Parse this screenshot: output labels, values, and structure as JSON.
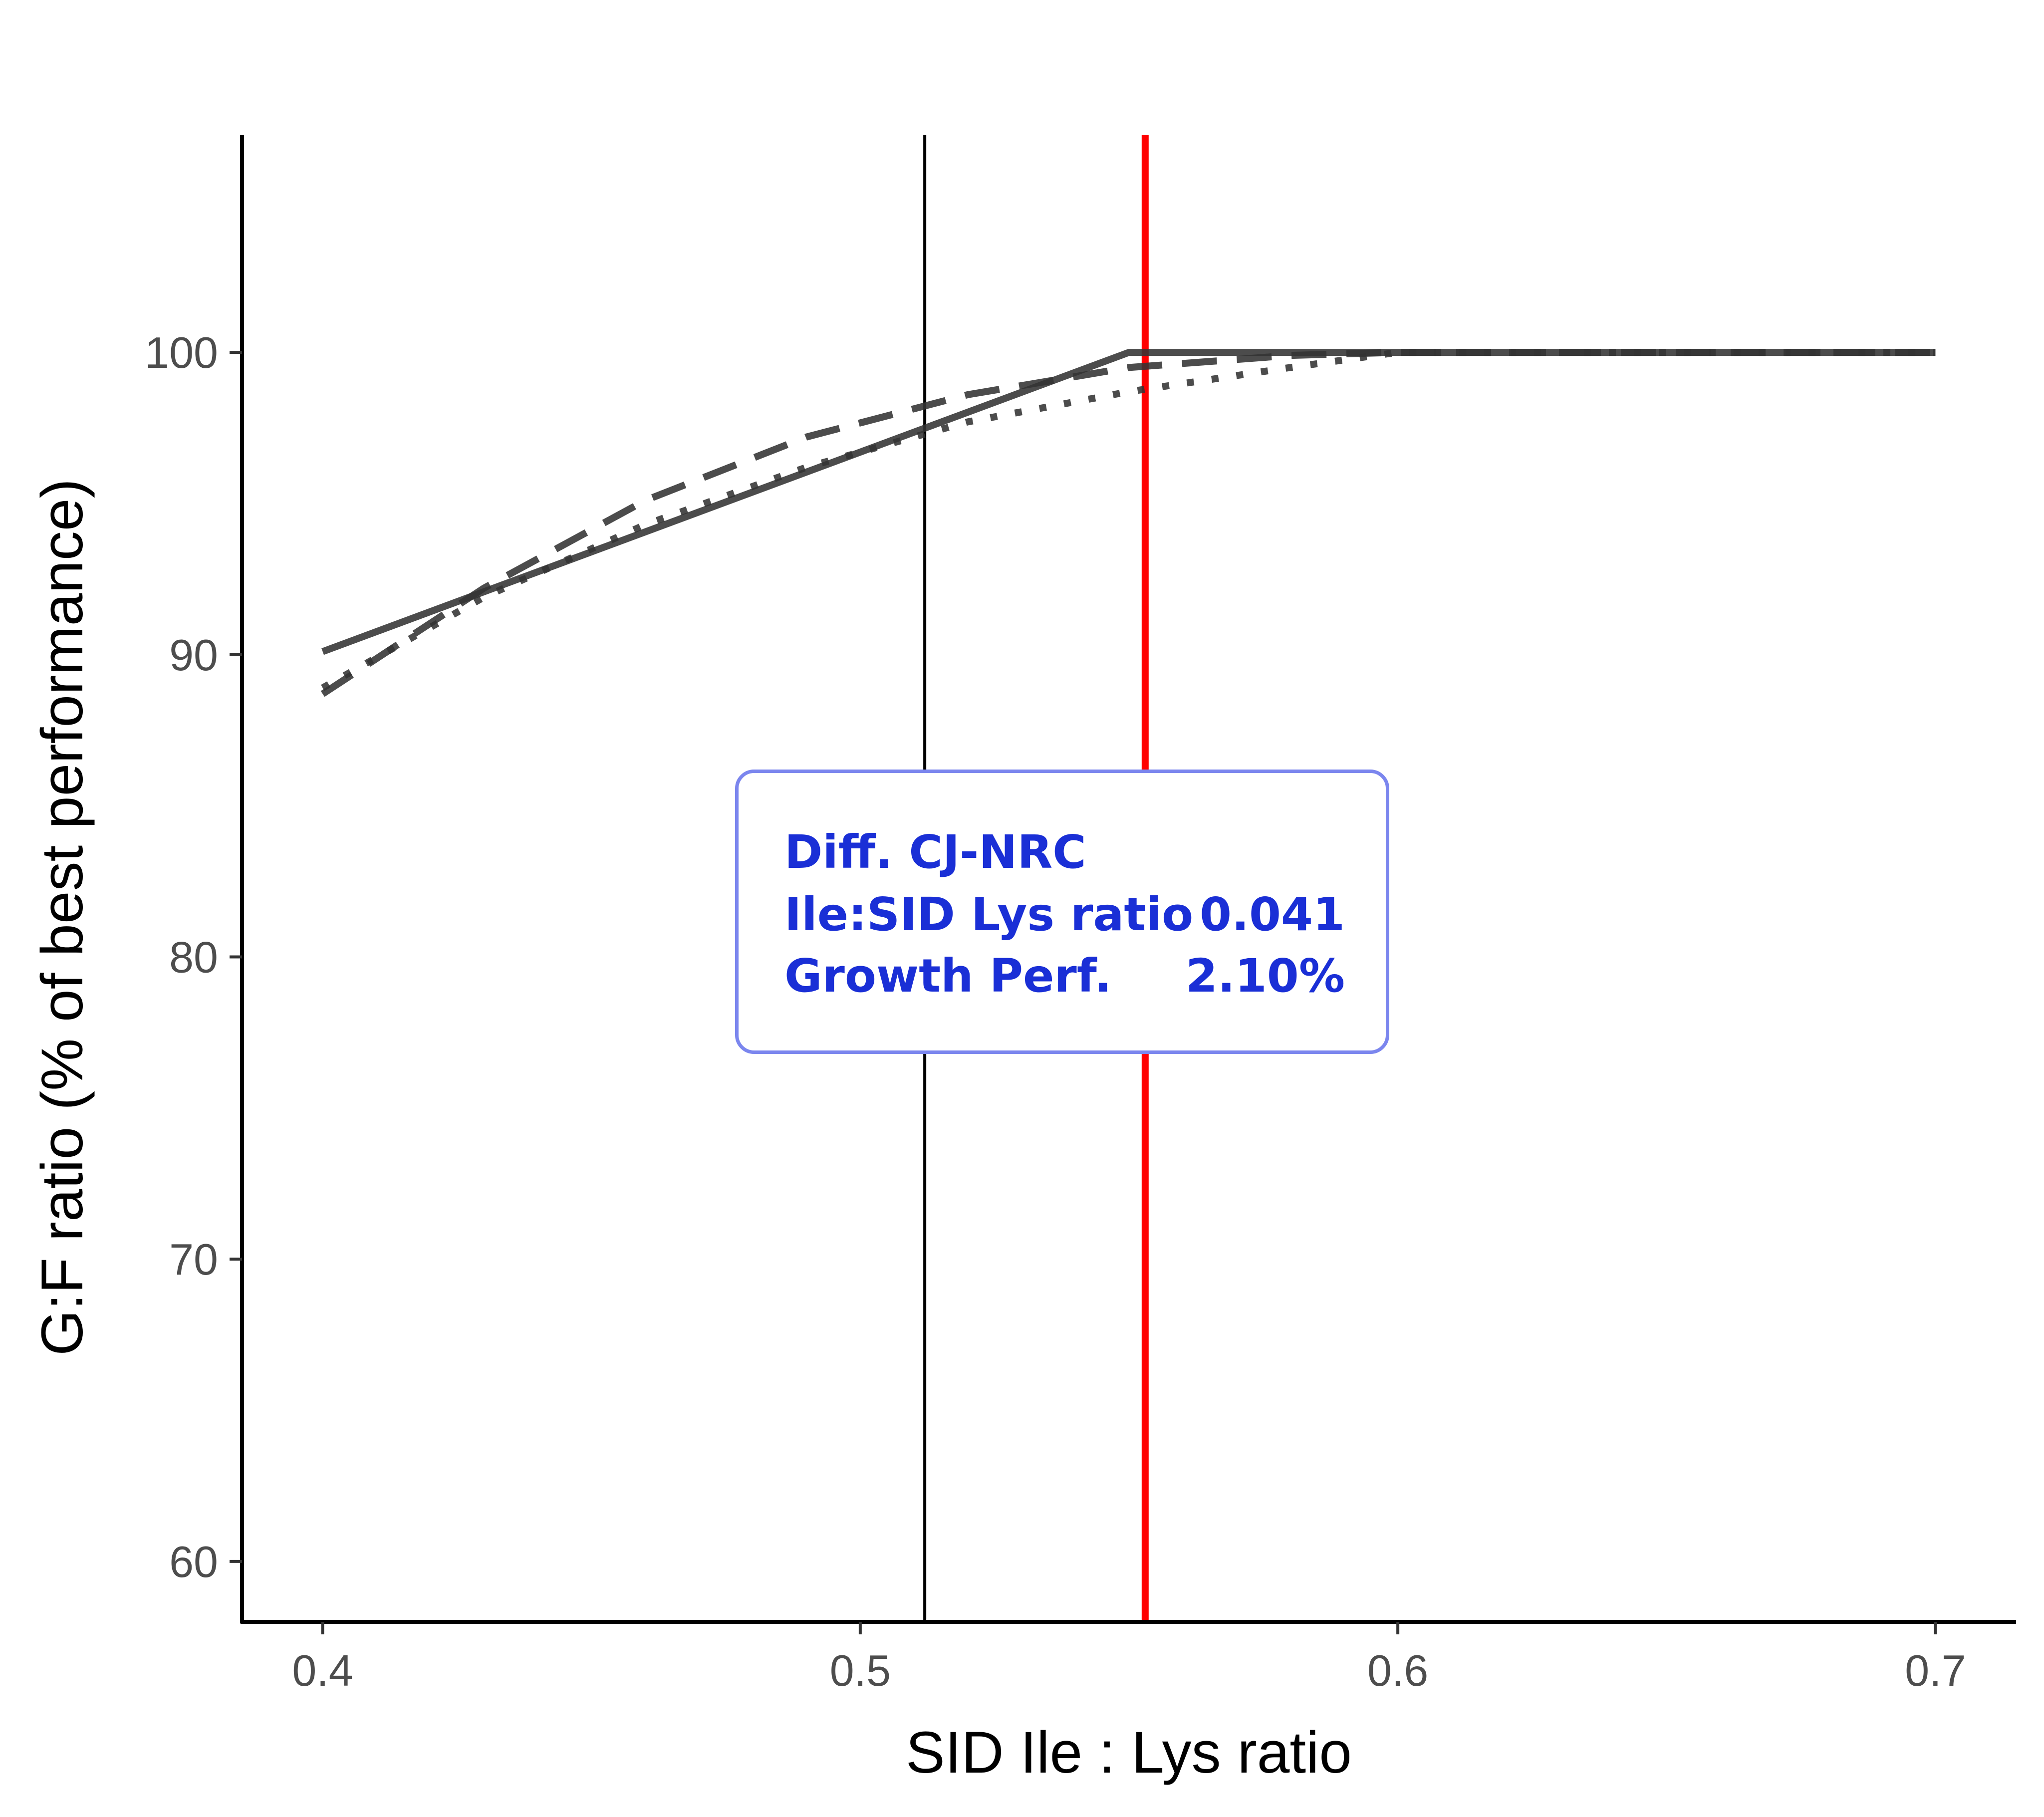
{
  "chart_data": {
    "type": "line",
    "xlabel": "SID Ile : Lys ratio",
    "ylabel": "G:F ratio (% of best performance)",
    "xlim": [
      0.385,
      0.715
    ],
    "ylim": [
      58.0,
      107.2
    ],
    "xticks": [
      "0.4",
      "0.5",
      "0.6",
      "0.7"
    ],
    "yticks": [
      "60",
      "70",
      "80",
      "90",
      "100"
    ],
    "series": [
      {
        "name": "solid",
        "style": "solid",
        "x": [
          0.4,
          0.55,
          0.7
        ],
        "y": [
          90.1,
          100.0,
          100.0
        ]
      },
      {
        "name": "dashed",
        "style": "dashed",
        "x": [
          0.4,
          0.43,
          0.46,
          0.49,
          0.52,
          0.55,
          0.58,
          0.6,
          0.7
        ],
        "y": [
          88.7,
          92.2,
          95.1,
          97.2,
          98.6,
          99.5,
          99.9,
          100.0,
          100.0
        ]
      },
      {
        "name": "dotted",
        "style": "dotted",
        "x": [
          0.4,
          0.43,
          0.46,
          0.49,
          0.52,
          0.55,
          0.58,
          0.6,
          0.7
        ],
        "y": [
          88.9,
          91.9,
          94.3,
          96.2,
          97.7,
          98.7,
          99.5,
          100.0,
          100.0
        ]
      }
    ],
    "vlines": [
      {
        "x": 0.512,
        "color": "#000000"
      },
      {
        "x": 0.553,
        "color": "#ff0000"
      }
    ]
  },
  "annotation": {
    "title": "Diff. CJ-NRC",
    "rows": [
      {
        "label": "Ile:SID Lys ratio",
        "value": "0.041"
      },
      {
        "label": "Growth Perf.",
        "value": "2.10%"
      }
    ],
    "text_color": "#1a2fd6",
    "border_color": "#7b86ee"
  }
}
